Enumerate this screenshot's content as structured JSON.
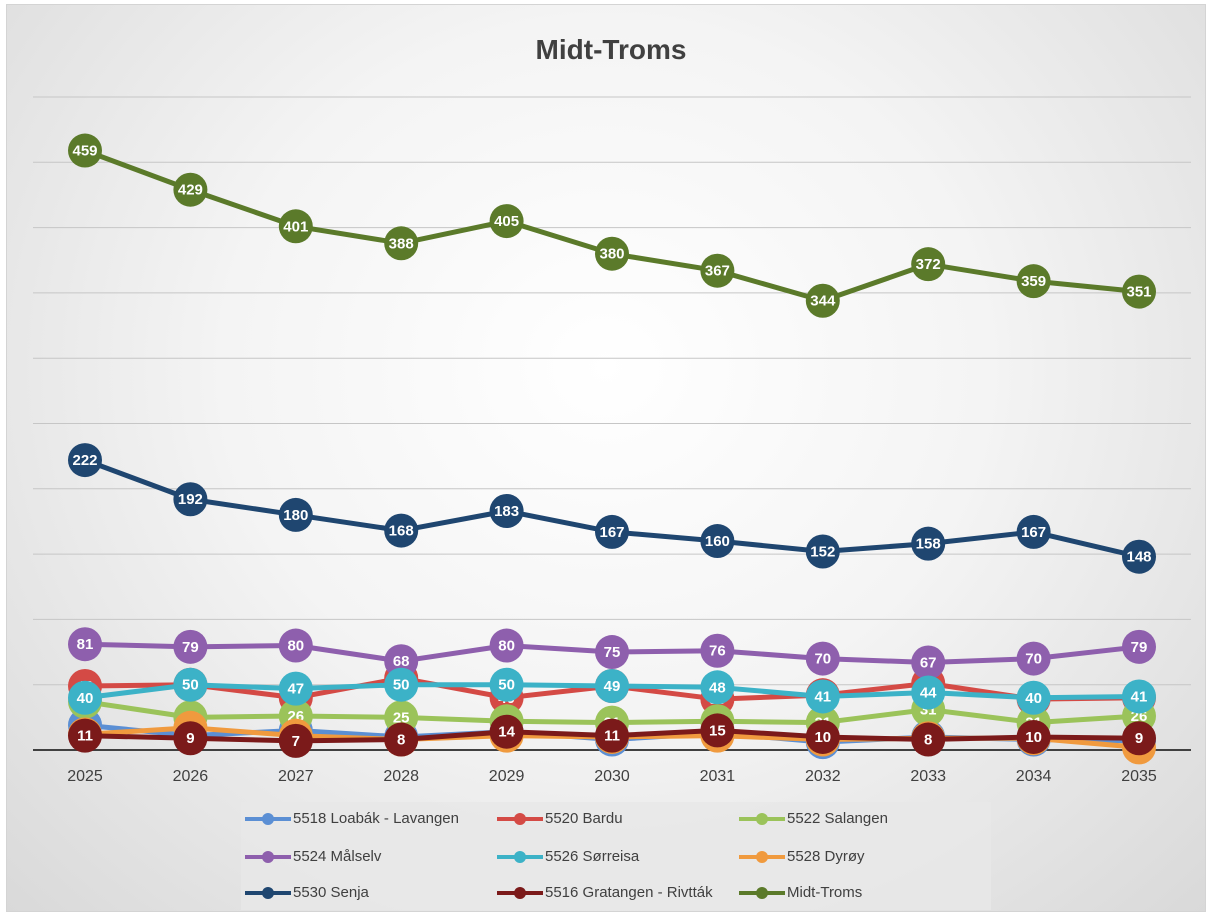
{
  "chart_data": {
    "type": "line",
    "title": "Midt-Troms",
    "categories": [
      "2025",
      "2026",
      "2027",
      "2028",
      "2029",
      "2030",
      "2031",
      "2032",
      "2033",
      "2034",
      "2035"
    ],
    "ylim": [
      0,
      500
    ],
    "grid": true,
    "legend_position": "bottom",
    "series": [
      {
        "name": "5518 Loabák - Lavangen",
        "color": "#5b8fd4",
        "values": [
          19,
          11,
          15,
          10,
          14,
          8,
          13,
          6,
          10,
          8,
          7
        ]
      },
      {
        "name": "5520 Bardu",
        "color": "#d44a45",
        "values": [
          49,
          50,
          40,
          55,
          40,
          49,
          39,
          42,
          51,
          39,
          40
        ]
      },
      {
        "name": "5522 Salangen",
        "color": "#9bc35a",
        "values": [
          37,
          25,
          26,
          25,
          22,
          21,
          22,
          21,
          31,
          21,
          26
        ]
      },
      {
        "name": "5524 Målselv",
        "color": "#8e5fad",
        "values": [
          81,
          79,
          80,
          68,
          80,
          75,
          76,
          70,
          67,
          70,
          79
        ]
      },
      {
        "name": "5526 Sørreisa",
        "color": "#3cb2c7",
        "values": [
          40,
          50,
          47,
          50,
          50,
          49,
          48,
          41,
          44,
          40,
          41
        ]
      },
      {
        "name": "5528 Dyrøy",
        "color": "#f09a3e",
        "values": [
          12,
          17,
          11,
          8,
          11,
          10,
          11,
          8,
          9,
          9,
          2
        ]
      },
      {
        "name": "5530 Senja",
        "color": "#1f4670",
        "values": [
          222,
          192,
          180,
          168,
          183,
          167,
          160,
          152,
          158,
          167,
          148
        ]
      },
      {
        "name": "5516 Gratangen - Rivtták",
        "color": "#7b1a1a",
        "values": [
          11,
          9,
          7,
          8,
          14,
          11,
          15,
          10,
          8,
          10,
          9
        ]
      },
      {
        "name": "Midt-Troms",
        "color": "#5b7a2a",
        "values": [
          459,
          429,
          401,
          388,
          405,
          380,
          367,
          344,
          372,
          359,
          351
        ]
      }
    ]
  }
}
